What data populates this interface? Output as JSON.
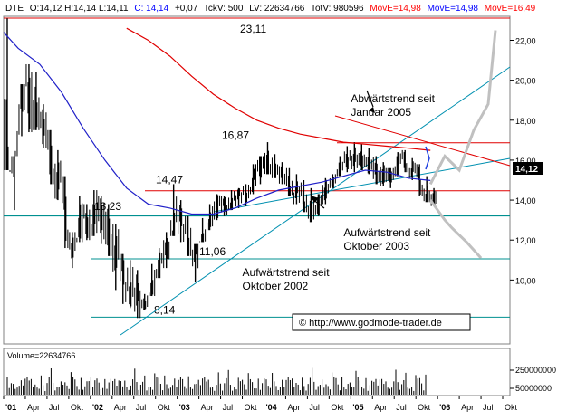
{
  "header": {
    "symbol": "DTE",
    "ohlc_text": "O:14,12 H:14,14 L:14,11",
    "close_text": "C: 14,14",
    "change_text": "+0,07",
    "tick_volume_text": "TckV: 500",
    "last_volume_text": "LV: 22634766",
    "total_volume_text": "TotV: 980596",
    "ma1_text": "MovE=14,98",
    "ma2_text": "MovE=14,98",
    "ma3_text": "MovE=16,49"
  },
  "volume_label": "Volume=22634766",
  "copyright": "© http://www.godmode-trader.de",
  "current_price_tag": "14,12",
  "colors": {
    "background": "#ffffff",
    "price": "#000000",
    "ma_fast": "#2020c8",
    "ma_slow": "#e00000",
    "trendline": "#0090b0",
    "support": "#009090",
    "resistance": "#e00000",
    "projection": "#c0c0c0",
    "ma_label_red": "#ff0000",
    "ma_label_blue": "#0000ff"
  },
  "chart_data": {
    "type": "candlestick",
    "title": "",
    "xlabel": "",
    "ylabel": "",
    "ylim": [
      6.8,
      23.2
    ],
    "yticks": [
      10,
      12,
      14,
      16,
      18,
      20,
      22
    ],
    "ytick_labels": [
      "10,00",
      "12,00",
      "14,00",
      "16,00",
      "18,00",
      "20,00",
      "22,00"
    ],
    "x_start": "2001-01",
    "x_end": "2006-11",
    "xticks": [
      {
        "date": "2001-01",
        "label": "'01"
      },
      {
        "date": "2001-04",
        "label": "Apr"
      },
      {
        "date": "2001-07",
        "label": "Jul"
      },
      {
        "date": "2001-10",
        "label": "Okt"
      },
      {
        "date": "2002-01",
        "label": "'02"
      },
      {
        "date": "2002-04",
        "label": "Apr"
      },
      {
        "date": "2002-07",
        "label": "Jul"
      },
      {
        "date": "2002-10",
        "label": "Okt"
      },
      {
        "date": "2003-01",
        "label": "'03"
      },
      {
        "date": "2003-04",
        "label": "Apr"
      },
      {
        "date": "2003-07",
        "label": "Jul"
      },
      {
        "date": "2003-10",
        "label": "Okt"
      },
      {
        "date": "2004-01",
        "label": "'04"
      },
      {
        "date": "2004-04",
        "label": "Apr"
      },
      {
        "date": "2004-07",
        "label": "Jul"
      },
      {
        "date": "2004-10",
        "label": "Okt"
      },
      {
        "date": "2005-01",
        "label": "'05"
      },
      {
        "date": "2005-04",
        "label": "Apr"
      },
      {
        "date": "2005-07",
        "label": "Jul"
      },
      {
        "date": "2005-10",
        "label": "Okt"
      },
      {
        "date": "2006-01",
        "label": "'06"
      },
      {
        "date": "2006-04",
        "label": "Apr"
      },
      {
        "date": "2006-07",
        "label": "Jul"
      },
      {
        "date": "2006-10",
        "label": "Okt"
      }
    ],
    "price_series": {
      "dates": [
        "2001-01",
        "2001-02",
        "2001-03",
        "2001-04",
        "2001-05",
        "2001-06",
        "2001-07",
        "2001-08",
        "2001-09",
        "2001-10",
        "2001-11",
        "2001-12",
        "2002-01",
        "2002-02",
        "2002-03",
        "2002-04",
        "2002-05",
        "2002-06",
        "2002-07",
        "2002-08",
        "2002-09",
        "2002-10",
        "2002-11",
        "2002-12",
        "2003-01",
        "2003-02",
        "2003-03",
        "2003-04",
        "2003-05",
        "2003-06",
        "2003-07",
        "2003-08",
        "2003-09",
        "2003-10",
        "2003-11",
        "2003-12",
        "2004-01",
        "2004-02",
        "2004-03",
        "2004-04",
        "2004-05",
        "2004-06",
        "2004-07",
        "2004-08",
        "2004-09",
        "2004-10",
        "2004-11",
        "2004-12",
        "2005-01",
        "2005-02",
        "2005-03",
        "2005-04",
        "2005-05",
        "2005-06",
        "2005-07",
        "2005-08",
        "2005-09",
        "2005-10",
        "2005-11",
        "2005-12"
      ],
      "highs": [
        23.1,
        16.2,
        19.8,
        20.8,
        20.4,
        18.8,
        17.5,
        16.5,
        15.2,
        12.4,
        14.2,
        13.8,
        14.5,
        14.2,
        13.8,
        12.8,
        11.3,
        11.0,
        10.5,
        9.3,
        10.8,
        11.6,
        12.4,
        14.8,
        14.0,
        13.2,
        11.8,
        13.1,
        13.8,
        14.3,
        14.2,
        14.5,
        14.6,
        14.8,
        15.8,
        16.2,
        16.9,
        16.3,
        15.9,
        15.6,
        15.3,
        15.0,
        14.6,
        14.3,
        15.1,
        15.3,
        16.2,
        16.7,
        16.9,
        16.8,
        16.6,
        16.2,
        15.9,
        15.6,
        16.4,
        16.5,
        16.1,
        15.8,
        15.2,
        14.6
      ],
      "lows": [
        15.5,
        13.5,
        17.2,
        17.4,
        17.5,
        16.6,
        14.8,
        14.0,
        11.6,
        10.6,
        11.9,
        12.0,
        12.2,
        11.8,
        11.2,
        9.5,
        8.8,
        8.6,
        8.1,
        8.5,
        9.2,
        10.1,
        10.6,
        12.2,
        11.9,
        11.2,
        9.9,
        11.9,
        12.5,
        13.0,
        13.2,
        13.5,
        13.6,
        13.7,
        14.3,
        14.8,
        15.3,
        15.1,
        14.8,
        14.2,
        13.8,
        13.4,
        12.9,
        13.2,
        13.8,
        14.6,
        15.2,
        15.4,
        15.4,
        15.5,
        15.3,
        14.8,
        14.7,
        14.6,
        15.2,
        15.4,
        15.0,
        14.2,
        13.9,
        13.7
      ],
      "closes": [
        15.8,
        17.8,
        20.2,
        18.6,
        17.9,
        17.3,
        15.2,
        14.8,
        12.1,
        11.6,
        13.2,
        12.6,
        13.6,
        12.6,
        12.2,
        10.8,
        9.8,
        9.6,
        8.6,
        9.0,
        10.0,
        11.0,
        12.0,
        13.1,
        12.6,
        11.6,
        11.2,
        12.4,
        13.4,
        13.8,
        13.7,
        14.1,
        14.2,
        14.5,
        15.4,
        16.0,
        15.6,
        15.3,
        15.2,
        14.4,
        14.2,
        13.8,
        13.3,
        14.1,
        14.8,
        15.0,
        15.9,
        16.3,
        15.7,
        16.2,
        15.6,
        15.1,
        15.4,
        15.2,
        16.2,
        15.6,
        15.4,
        14.4,
        14.0,
        14.12
      ]
    },
    "moving_averages": [
      {
        "dates": [
          "2001-01",
          "2001-03",
          "2001-06",
          "2001-09",
          "2001-12",
          "2002-03",
          "2002-06",
          "2002-09",
          "2002-12",
          "2003-03",
          "2003-06",
          "2003-09",
          "2003-12",
          "2004-03",
          "2004-06",
          "2004-09",
          "2004-12",
          "2005-03",
          "2005-06",
          "2005-09",
          "2005-12"
        ],
        "values": [
          22.4,
          21.6,
          20.8,
          19.4,
          17.6,
          16.0,
          14.6,
          13.8,
          13.6,
          13.3,
          13.3,
          13.6,
          14.1,
          14.5,
          14.7,
          14.9,
          15.2,
          15.5,
          15.4,
          15.1,
          14.98
        ]
      },
      {
        "dates": [
          "2002-06",
          "2002-09",
          "2002-12",
          "2003-03",
          "2003-06",
          "2003-09",
          "2003-12",
          "2004-03",
          "2004-06",
          "2004-09",
          "2004-12",
          "2005-03",
          "2005-06",
          "2005-09",
          "2005-12"
        ],
        "values": [
          22.6,
          22.0,
          21.2,
          20.2,
          19.3,
          18.6,
          18.0,
          17.6,
          17.3,
          17.1,
          16.9,
          16.8,
          16.7,
          16.6,
          16.49
        ]
      }
    ],
    "horizontal_levels": [
      {
        "value": 23.11,
        "label": "23,11"
      },
      {
        "value": 16.87,
        "label": "16,87"
      },
      {
        "value": 14.47,
        "label": "14,47"
      },
      {
        "value": 13.23,
        "label": "13,23"
      },
      {
        "value": 11.06,
        "label": "11,06"
      },
      {
        "value": 8.14,
        "label": "8,14"
      }
    ],
    "annotations": [
      {
        "text": [
          "Abwärtstrend seit",
          "Januar 2005"
        ],
        "x": "2005-01",
        "y": 18.9
      },
      {
        "text": [
          "Aufwärtstrend seit",
          "Oktober 2003"
        ],
        "x": "2004-12",
        "y": 12.2
      },
      {
        "text": [
          "Aufwärtstrend seit",
          "Oktober 2002"
        ],
        "x": "2003-10",
        "y": 10.2
      }
    ],
    "projections": [
      {
        "dates": [
          "2005-12",
          "2006-02",
          "2006-04",
          "2006-06",
          "2006-08",
          "2006-09"
        ],
        "values": [
          14.8,
          16.2,
          15.5,
          17.5,
          18.8,
          22.5
        ]
      },
      {
        "dates": [
          "2005-12",
          "2006-02",
          "2006-03",
          "2006-05",
          "2006-07"
        ],
        "values": [
          14.0,
          13.0,
          12.6,
          11.9,
          11.1
        ]
      }
    ],
    "volume": {
      "ytick_labels": [
        "250000000",
        "50000000"
      ]
    }
  }
}
